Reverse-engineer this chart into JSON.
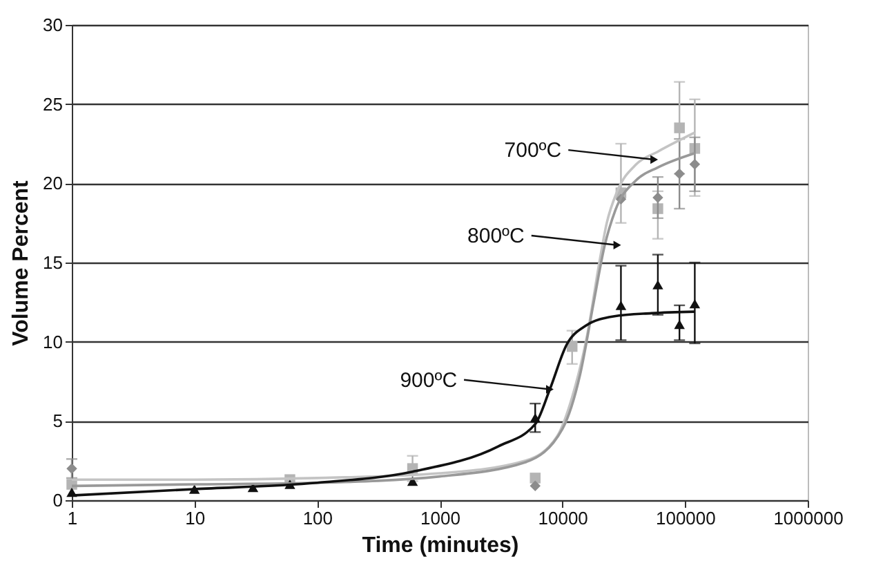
{
  "chart_data": {
    "type": "scatter",
    "xlabel": "Time (minutes)",
    "ylabel": "Volume Percent",
    "log": "x",
    "xlim": [
      1,
      1000000
    ],
    "xticks": [
      1,
      10,
      100,
      1000,
      10000,
      100000,
      1000000
    ],
    "ylim": [
      0,
      30
    ],
    "yticks": [
      0,
      5,
      10,
      15,
      20,
      25,
      30
    ],
    "grid": "y",
    "annotations": [
      {
        "text": "700ºC",
        "x": 56000,
        "y": 21.5
      },
      {
        "text": "800ºC",
        "x": 28000,
        "y": 16.1
      },
      {
        "text": "900ºC",
        "x": 7900,
        "y": 7.0
      }
    ],
    "series": [
      {
        "color": "#b4b4b4",
        "marker": "square",
        "x": [
          1,
          10,
          30,
          60,
          600,
          6000,
          12000,
          30000,
          60000,
          90000,
          120000
        ],
        "values": [
          1.0,
          null,
          null,
          1.3,
          2.0,
          1.4,
          9.7,
          19.4,
          18.4,
          23.5,
          22.2
        ],
        "errors": [
          null,
          null,
          null,
          null,
          [
            1.2,
            2.8
          ],
          null,
          [
            8.6,
            10.7
          ],
          [
            17.5,
            22.5
          ],
          [
            16.5,
            19.5
          ],
          [
            20.6,
            26.4
          ],
          [
            19.2,
            25.3
          ]
        ]
      },
      {
        "color": "#8c8c8c",
        "marker": "diamond",
        "x": [
          1,
          600,
          6000,
          30000,
          60000,
          90000,
          120000
        ],
        "values": [
          2.0,
          null,
          0.9,
          19.0,
          19.1,
          20.6,
          21.2
        ],
        "errors": [
          [
            1.4,
            2.6
          ],
          null,
          null,
          null,
          [
            17.8,
            20.4
          ],
          [
            18.4,
            22.8
          ],
          [
            19.5,
            22.9
          ]
        ]
      },
      {
        "color": "#111111",
        "marker": "triangle",
        "x": [
          1,
          10,
          30,
          60,
          600,
          6000,
          30000,
          60000,
          90000,
          120000
        ],
        "values": [
          0.5,
          0.7,
          0.8,
          1.0,
          1.2,
          5.2,
          12.3,
          13.6,
          11.1,
          12.4
        ],
        "errors": [
          null,
          null,
          null,
          null,
          null,
          [
            4.3,
            6.1
          ],
          [
            10.1,
            14.8
          ],
          [
            11.7,
            15.5
          ],
          [
            10.1,
            12.3
          ],
          [
            9.9,
            15.0
          ]
        ]
      },
      {
        "type": "line",
        "color": "#c4c4c4",
        "marker": "none",
        "line_style": "solid",
        "x": [
          1,
          10,
          100,
          1000,
          5000,
          9000,
          12000,
          16000,
          20000,
          23000,
          28000,
          40000,
          60000,
          120000
        ],
        "values": [
          1.3,
          1.3,
          1.4,
          1.7,
          2.5,
          4.0,
          6.5,
          10.5,
          15.0,
          17.5,
          19.5,
          21.2,
          22.0,
          23.2
        ]
      },
      {
        "type": "line",
        "color": "#999999",
        "marker": "none",
        "line_style": "solid",
        "x": [
          1,
          10,
          100,
          1000,
          5000,
          10000,
          14000,
          18000,
          22000,
          27000,
          40000,
          60000,
          120000
        ],
        "values": [
          0.9,
          1.0,
          1.1,
          1.5,
          2.4,
          4.5,
          8.0,
          12.5,
          16.0,
          18.3,
          20.2,
          21.0,
          21.9
        ]
      },
      {
        "type": "line",
        "color": "#111111",
        "marker": "none",
        "line_style": "solid",
        "x": [
          1,
          10,
          100,
          600,
          3000,
          6000,
          7900,
          10800,
          15400,
          26000,
          53000,
          120000
        ],
        "values": [
          0.3,
          0.7,
          1.1,
          1.8,
          3.4,
          4.8,
          7.0,
          9.8,
          11.0,
          11.6,
          11.8,
          11.9
        ]
      }
    ]
  }
}
